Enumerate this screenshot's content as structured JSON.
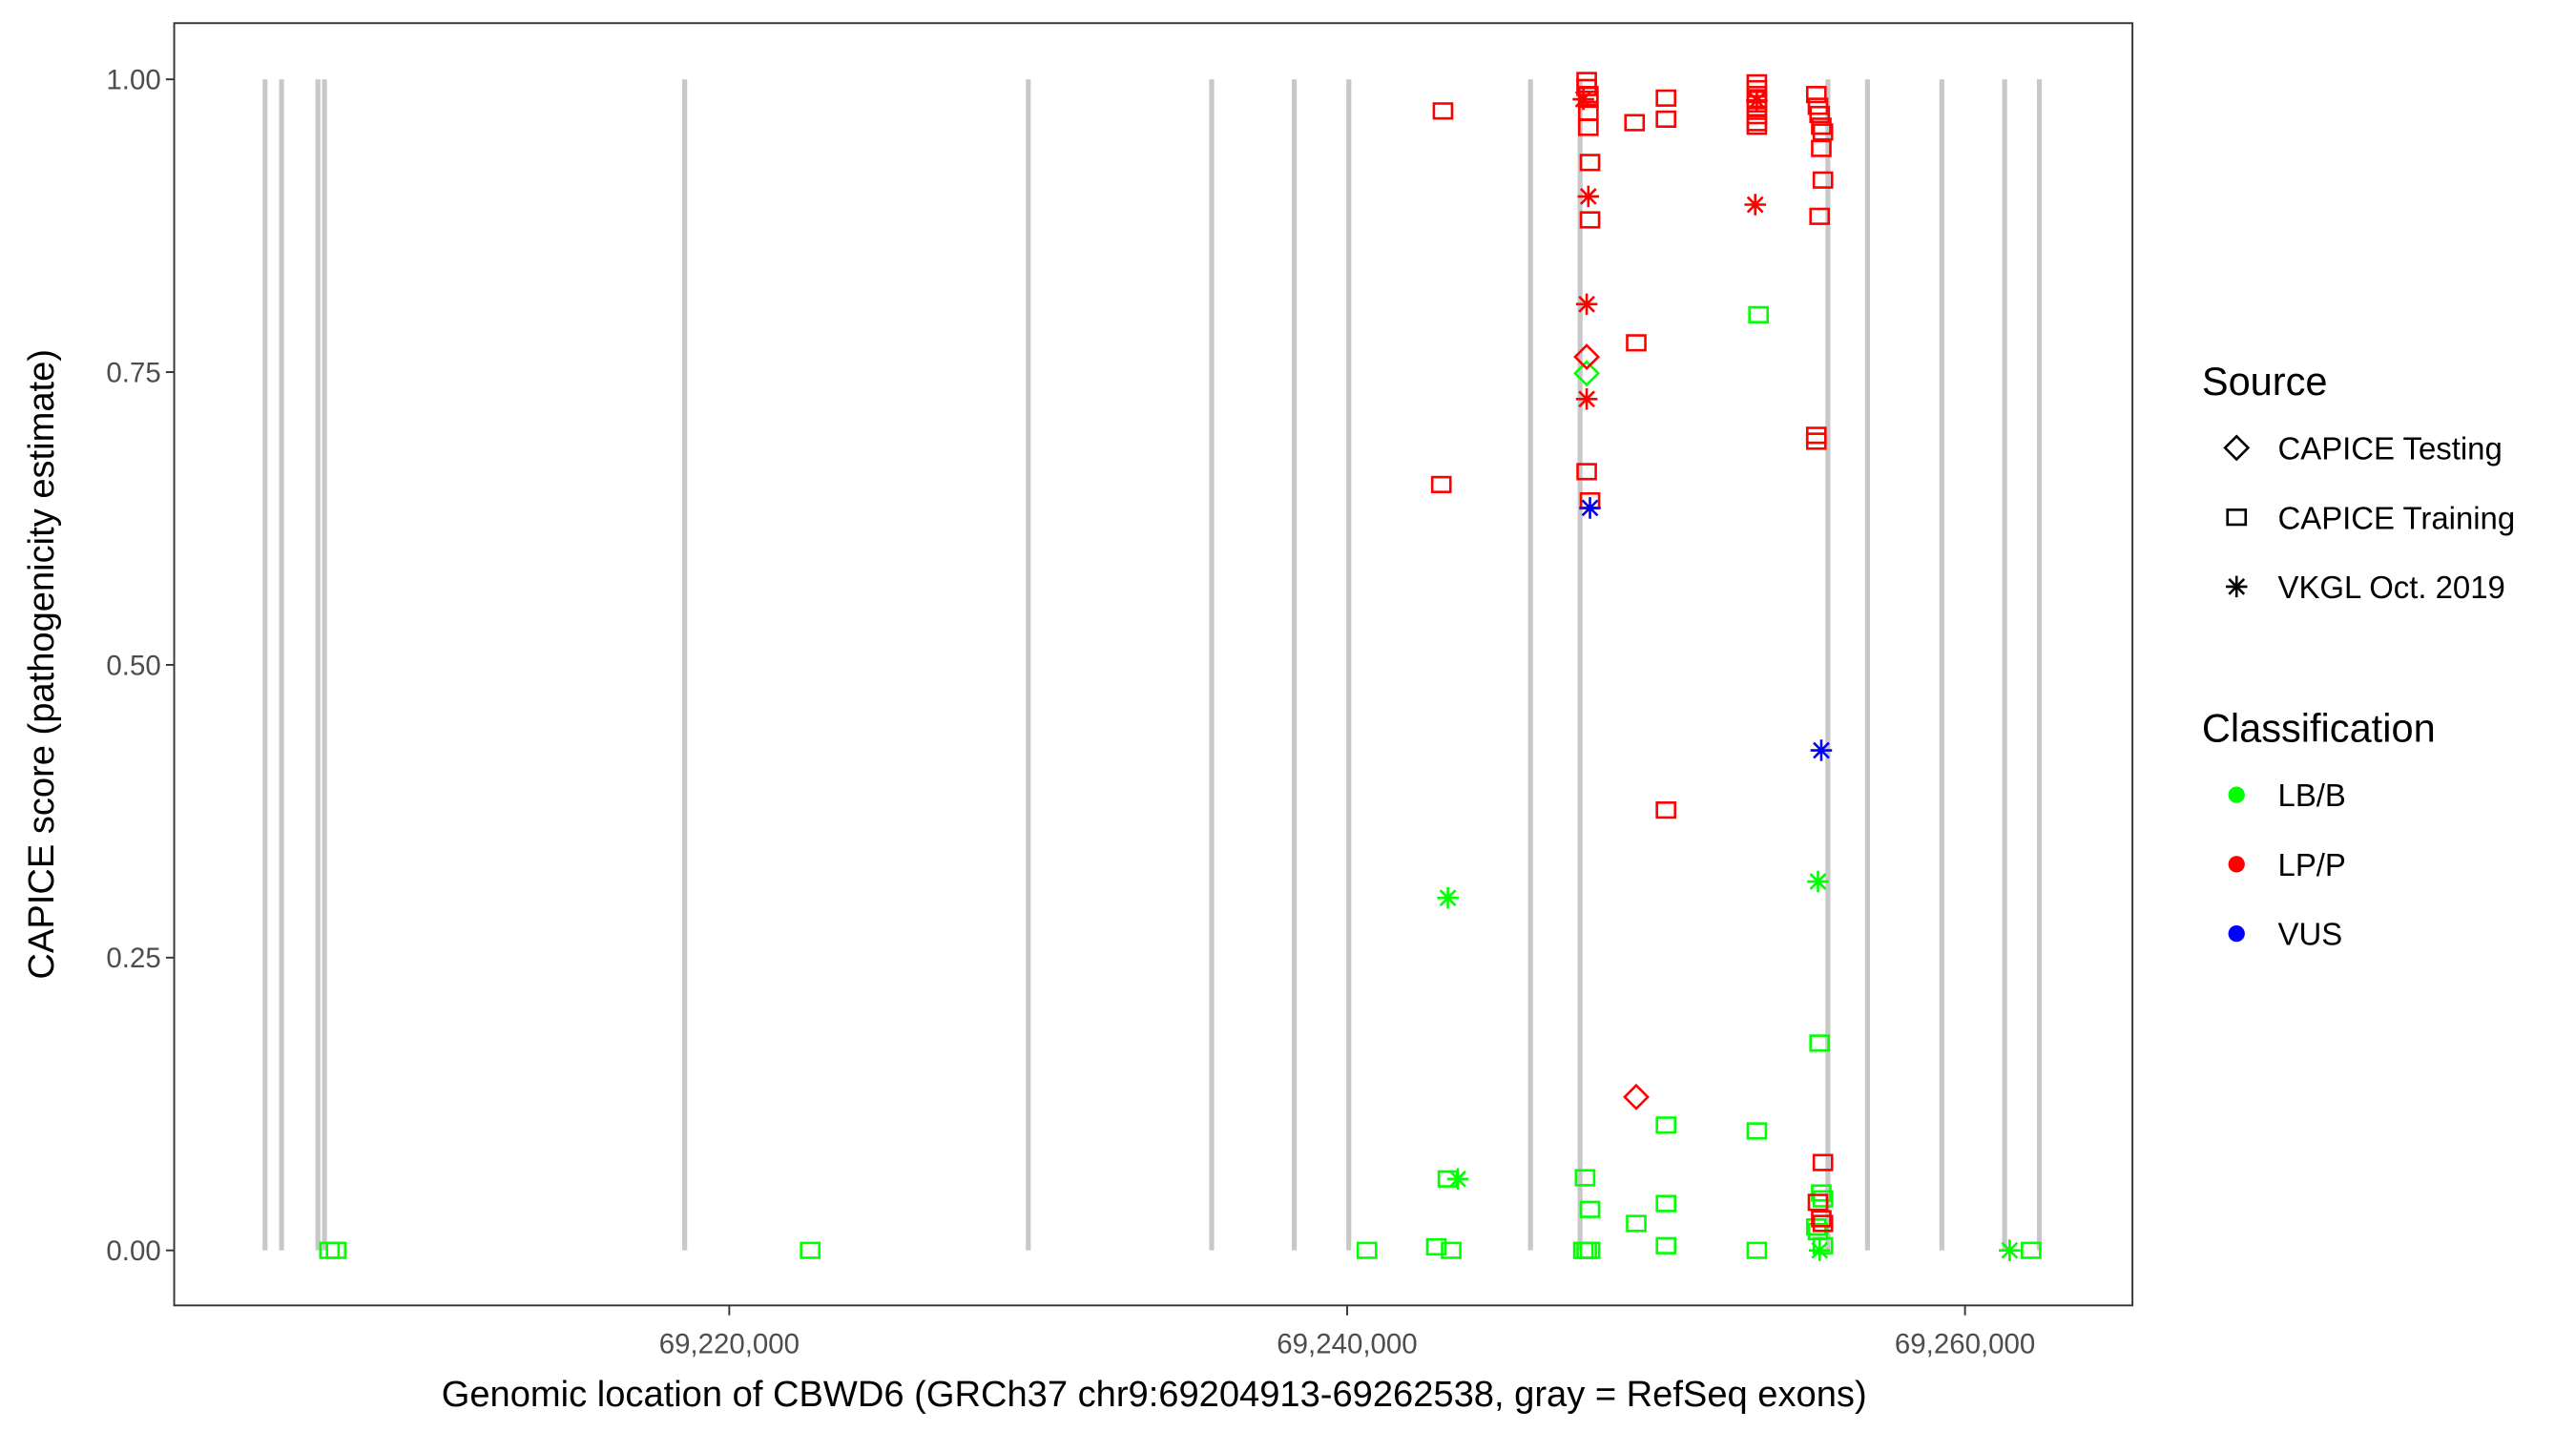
{
  "chart_data": {
    "type": "scatter",
    "xlabel": "Genomic location of CBWD6 (GRCh37 chr9:69204913-69262538, gray = RefSeq exons)",
    "ylabel": "CAPICE score (pathogenicity estimate)",
    "xlim": [
      69202032,
      69265420
    ],
    "ylim": [
      -0.047,
      1.048
    ],
    "x_ticks": [
      69220000,
      69240000,
      69260000
    ],
    "x_tick_labels": [
      "69,220,000",
      "69,240,000",
      "69,260,000"
    ],
    "y_ticks": [
      0,
      0.25,
      0.5,
      0.75,
      1.0
    ],
    "y_tick_labels": [
      "0.00",
      "0.25",
      "0.50",
      "0.75",
      "1.00"
    ],
    "grid": false,
    "legend_position": "right",
    "exon_color": "#c8c8c8",
    "exons": [
      69204973,
      69205508,
      69206684,
      69206898,
      69218556,
      69229679,
      69235615,
      69238289,
      69240053,
      69245936,
      69247540,
      69255562,
      69256845,
      69259251,
      69261283,
      69262406
    ],
    "legend": {
      "source_title": "Source",
      "sources": [
        {
          "label": "CAPICE Testing",
          "shape": "diamond"
        },
        {
          "label": "CAPICE Training",
          "shape": "square"
        },
        {
          "label": "VKGL Oct. 2019",
          "shape": "asterisk"
        }
      ],
      "classification_title": "Classification",
      "classes": [
        {
          "label": "LB/B",
          "color": "#00ff00"
        },
        {
          "label": "LP/P",
          "color": "#ff0000"
        },
        {
          "label": "VUS",
          "color": "#0000ff"
        }
      ]
    },
    "point_fields": [
      "position",
      "score",
      "source_index",
      "class_index"
    ],
    "points": [
      [
        69207059,
        0,
        1,
        0
      ],
      [
        69207273,
        0,
        1,
        0
      ],
      [
        69222620,
        0,
        1,
        0
      ],
      [
        69240642,
        0,
        1,
        0
      ],
      [
        69242888,
        0.003,
        1,
        0
      ],
      [
        69243369,
        0,
        1,
        0
      ],
      [
        69243262,
        0.061,
        1,
        0
      ],
      [
        69243583,
        0.061,
        2,
        0
      ],
      [
        69243262,
        0.301,
        2,
        0
      ],
      [
        69247647,
        0,
        1,
        0
      ],
      [
        69247754,
        0,
        1,
        0
      ],
      [
        69247861,
        0,
        1,
        0
      ],
      [
        69247701,
        0.062,
        1,
        0
      ],
      [
        69247861,
        0.035,
        1,
        0
      ],
      [
        69247754,
        0.749,
        0,
        0
      ],
      [
        69249358,
        0.023,
        1,
        0
      ],
      [
        69250321,
        0.107,
        1,
        0
      ],
      [
        69250321,
        0.04,
        1,
        0
      ],
      [
        69250321,
        0.004,
        1,
        0
      ],
      [
        69253262,
        0.102,
        1,
        0
      ],
      [
        69253262,
        0,
        1,
        0
      ],
      [
        69253316,
        0.799,
        1,
        0
      ],
      [
        69255241,
        0.315,
        2,
        0
      ],
      [
        69255294,
        0.177,
        1,
        0
      ],
      [
        69255348,
        0.049,
        1,
        0
      ],
      [
        69255401,
        0.044,
        1,
        0
      ],
      [
        69255241,
        0.016,
        1,
        0
      ],
      [
        69255187,
        0.02,
        1,
        0
      ],
      [
        69255294,
        0,
        2,
        0
      ],
      [
        69255401,
        0.004,
        1,
        0
      ],
      [
        69261444,
        0,
        2,
        0
      ],
      [
        69262139,
        0,
        1,
        0
      ],
      [
        69243102,
        0.973,
        1,
        1
      ],
      [
        69243048,
        0.654,
        1,
        1
      ],
      [
        69247754,
        0.999,
        1,
        1
      ],
      [
        69247754,
        0.993,
        1,
        1
      ],
      [
        69247808,
        0.987,
        1,
        1
      ],
      [
        69247808,
        0.983,
        1,
        1
      ],
      [
        69247647,
        0.983,
        2,
        1
      ],
      [
        69247808,
        0.972,
        1,
        1
      ],
      [
        69247808,
        0.959,
        1,
        1
      ],
      [
        69247861,
        0.929,
        1,
        1
      ],
      [
        69247808,
        0.9,
        2,
        1
      ],
      [
        69247861,
        0.88,
        1,
        1
      ],
      [
        69247754,
        0.808,
        2,
        1
      ],
      [
        69247754,
        0.763,
        0,
        1
      ],
      [
        69247754,
        0.727,
        2,
        1
      ],
      [
        69247754,
        0.665,
        1,
        1
      ],
      [
        69247861,
        0.64,
        1,
        1
      ],
      [
        69249305,
        0.963,
        1,
        1
      ],
      [
        69249358,
        0.775,
        1,
        1
      ],
      [
        69250321,
        0.984,
        1,
        1
      ],
      [
        69250321,
        0.966,
        1,
        1
      ],
      [
        69250321,
        0.376,
        1,
        1
      ],
      [
        69249358,
        0.131,
        0,
        1
      ],
      [
        69253262,
        0.997,
        1,
        1
      ],
      [
        69253262,
        0.992,
        1,
        1
      ],
      [
        69253262,
        0.987,
        1,
        1
      ],
      [
        69253262,
        0.983,
        1,
        1
      ],
      [
        69253262,
        0.979,
        1,
        1
      ],
      [
        69253262,
        0.975,
        1,
        1
      ],
      [
        69253262,
        0.969,
        1,
        1
      ],
      [
        69253262,
        0.963,
        1,
        1
      ],
      [
        69253262,
        0.96,
        1,
        1
      ],
      [
        69253262,
        0.982,
        2,
        1
      ],
      [
        69253209,
        0.893,
        2,
        1
      ],
      [
        69255187,
        0.987,
        1,
        1
      ],
      [
        69255241,
        0.977,
        1,
        1
      ],
      [
        69255294,
        0.97,
        1,
        1
      ],
      [
        69255348,
        0.96,
        1,
        1
      ],
      [
        69255401,
        0.955,
        1,
        1
      ],
      [
        69255348,
        0.941,
        1,
        1
      ],
      [
        69255401,
        0.914,
        1,
        1
      ],
      [
        69255294,
        0.883,
        1,
        1
      ],
      [
        69255187,
        0.696,
        1,
        1
      ],
      [
        69255187,
        0.691,
        1,
        1
      ],
      [
        69255401,
        0.075,
        1,
        1
      ],
      [
        69255241,
        0.041,
        1,
        1
      ],
      [
        69255348,
        0.027,
        1,
        1
      ],
      [
        69255401,
        0.023,
        1,
        1
      ],
      [
        69247861,
        0.634,
        2,
        2
      ],
      [
        69255348,
        0.427,
        2,
        2
      ]
    ]
  }
}
